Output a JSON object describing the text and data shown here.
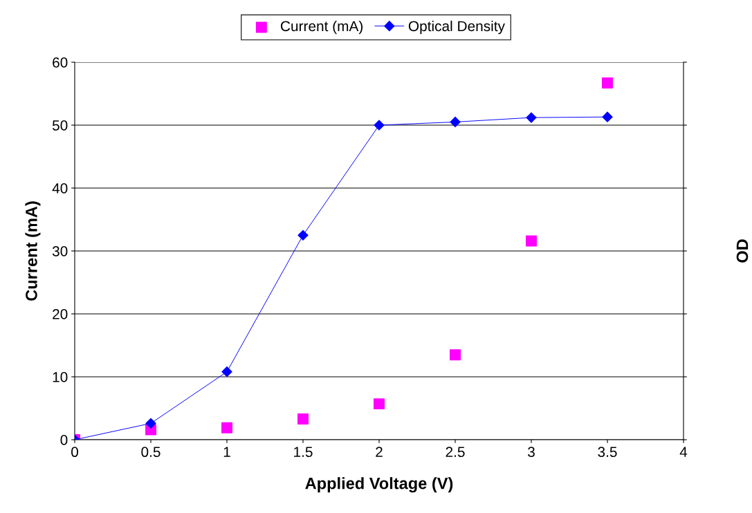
{
  "chart_data": {
    "type": "scatter",
    "xlabel": "Applied Voltage (V)",
    "ylabel": "Current (mA)",
    "y2label": "OD",
    "x": [
      0,
      0.5,
      1,
      1.5,
      2,
      2.5,
      3,
      3.5
    ],
    "series": [
      {
        "name": "Current (mA)",
        "marker": "square",
        "color": "#ff00ff",
        "values": [
          0,
          1.6,
          1.9,
          3.3,
          5.7,
          13.5,
          31.6,
          56.7
        ]
      },
      {
        "name": "Optical Density",
        "type": "line",
        "marker": "diamond",
        "color": "#0000ff",
        "values": [
          0,
          2.6,
          10.8,
          32.5,
          50.0,
          50.5,
          51.2,
          51.3
        ]
      }
    ],
    "xlim": [
      0,
      4
    ],
    "xticks": [
      0,
      0.5,
      1,
      1.5,
      2,
      2.5,
      3,
      3.5,
      4
    ],
    "ylim": [
      0,
      60
    ],
    "yticks": [
      0,
      10,
      20,
      30,
      40,
      50,
      60
    ],
    "grid": "y",
    "legend": "top"
  }
}
